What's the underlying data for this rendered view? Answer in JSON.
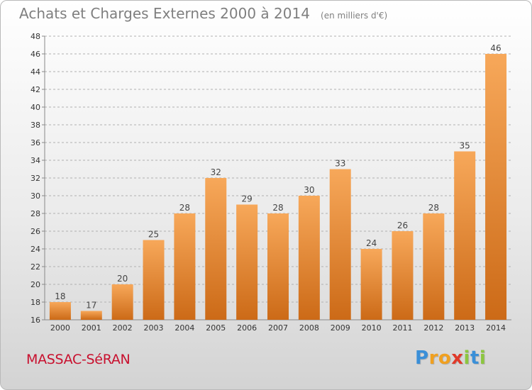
{
  "title": "Achats et Charges Externes 2000 à 2014",
  "unit_label": "(en milliers d'€)",
  "place_name": "MASSAC-SéRAN",
  "logo": {
    "letters": [
      {
        "char": "P",
        "color": "#3a8fd8"
      },
      {
        "char": "r",
        "color": "#f0a020"
      },
      {
        "char": "o",
        "color": "#f0a020"
      },
      {
        "char": "x",
        "color": "#e03a2a"
      },
      {
        "char": "i",
        "color": "#8cc63f"
      },
      {
        "char": "t",
        "color": "#3a8fd8"
      },
      {
        "char": "i",
        "color": "#8cc63f"
      }
    ]
  },
  "colors": {
    "bar_top": "#f7a85a",
    "bar_bottom": "#cc6a17",
    "grid": "#b0b0b0",
    "title": "#7f7f7f",
    "place": "#c8102e"
  },
  "chart_data": {
    "type": "bar",
    "title": "Achats et Charges Externes 2000 à 2014",
    "subtitle": "(en milliers d'€)",
    "xlabel": "",
    "ylabel": "",
    "categories": [
      "2000",
      "2001",
      "2002",
      "2003",
      "2004",
      "2005",
      "2006",
      "2007",
      "2008",
      "2009",
      "2010",
      "2011",
      "2012",
      "2013",
      "2014"
    ],
    "values": [
      18,
      17,
      20,
      25,
      28,
      32,
      29,
      28,
      30,
      33,
      24,
      26,
      28,
      35,
      46
    ],
    "ylim": [
      16,
      48
    ],
    "yticks": [
      16,
      18,
      20,
      22,
      24,
      26,
      28,
      30,
      32,
      34,
      36,
      38,
      40,
      42,
      44,
      46,
      48
    ],
    "grid": "horizontal dashed",
    "legend": "none"
  }
}
